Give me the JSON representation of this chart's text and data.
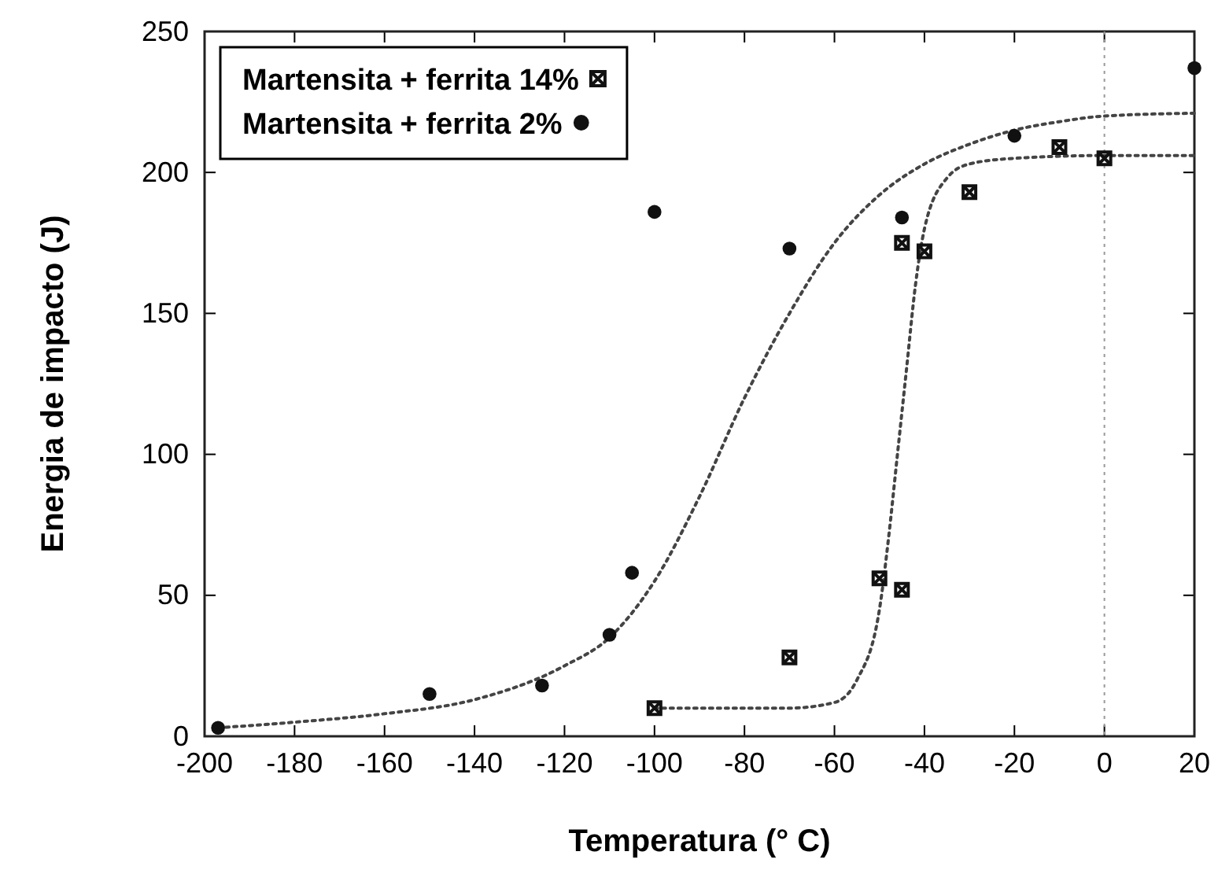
{
  "chart_data": {
    "type": "scatter",
    "xlabel": "Temperatura (° C)",
    "ylabel": "Energia de impacto (J)",
    "xlim": [
      -200,
      20
    ],
    "xticks": [
      -200,
      -180,
      -160,
      -140,
      -120,
      -100,
      -80,
      -60,
      -40,
      -20,
      0,
      20
    ],
    "ylim": [
      0,
      250
    ],
    "yticks": [
      0,
      50,
      100,
      150,
      200,
      250
    ],
    "grid": false,
    "legend": "top left",
    "ref_lines": [
      {
        "axis": "x",
        "value": 0,
        "color": "#999999",
        "line_style": "dotted"
      }
    ],
    "series": [
      {
        "name": "Martensita + ferrita 14%",
        "color": "#111111",
        "marker": "cross",
        "x": [
          -100,
          -70,
          -50,
          -45,
          -45,
          -40,
          -30,
          -10,
          0
        ],
        "values": [
          10,
          28,
          56,
          52,
          175,
          172,
          193,
          209,
          205
        ]
      },
      {
        "name": "Martensita + ferrita 2%",
        "color": "#111111",
        "marker": "circle",
        "x": [
          -197,
          -150,
          -125,
          -110,
          -105,
          -100,
          -70,
          -45,
          -20,
          20
        ],
        "values": [
          3,
          15,
          18,
          36,
          58,
          186,
          173,
          184,
          213,
          237
        ]
      },
      {
        "type": "line",
        "color": "#444444",
        "line_style": "dotted",
        "x": [
          -197,
          -180,
          -160,
          -140,
          -120,
          -110,
          -100,
          -90,
          -80,
          -70,
          -60,
          -50,
          -40,
          -30,
          -20,
          -10,
          0,
          20
        ],
        "values": [
          3,
          5,
          8,
          13,
          25,
          35,
          55,
          85,
          120,
          150,
          175,
          192,
          203,
          210,
          215,
          218,
          220,
          221
        ]
      },
      {
        "type": "line",
        "color": "#444444",
        "line_style": "dotted",
        "x": [
          -100,
          -70,
          -60,
          -55,
          -50,
          -48,
          -46,
          -44,
          -42,
          -40,
          -35,
          -30,
          -20,
          0,
          20
        ],
        "values": [
          10,
          10,
          12,
          20,
          45,
          70,
          100,
          130,
          160,
          180,
          198,
          203,
          205,
          206,
          206
        ]
      }
    ]
  }
}
